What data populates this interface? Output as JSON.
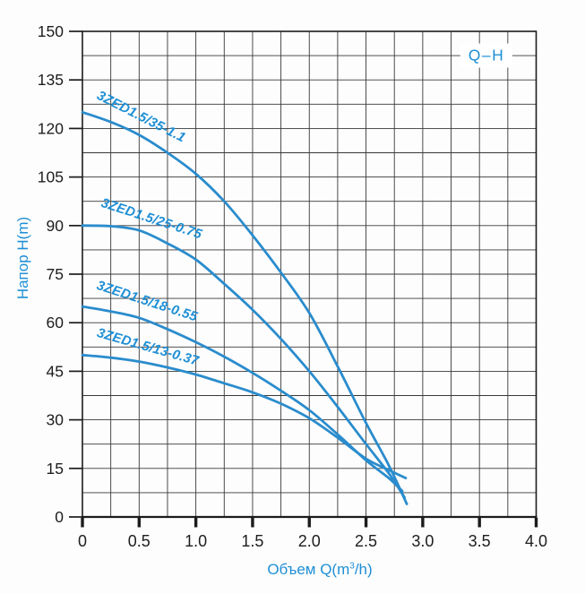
{
  "figure": {
    "title": "Q–H",
    "y_axis_title": "Напор H(m)",
    "x_axis_title": "Объем Q(m³/h)",
    "x_axis_title_parts": {
      "prefix": "Объем Q(m",
      "sup": "3",
      "suffix": "/h)"
    }
  },
  "colors": {
    "curve_blue": "#2a8ccd",
    "label_blue": "#1e8fd5",
    "grid_line": "#383838",
    "axis_line": "#1c1c1c",
    "tick_text": "#1d1d1d",
    "background": "#ffffff"
  },
  "chart_data": {
    "type": "line",
    "title": "Q–H",
    "xlabel": "Объем Q(m³/h)",
    "ylabel": "Напор H(m)",
    "xlim": [
      0,
      4.0
    ],
    "ylim": [
      0,
      150
    ],
    "x_major_step": 0.5,
    "x_minor_step": 0.25,
    "y_major_step": 15,
    "y_minor_step": 7.5,
    "grid": true,
    "x_tick_labels": [
      "0",
      "0.5",
      "1.0",
      "1.5",
      "2.0",
      "2.5",
      "3.0",
      "3.5",
      "4.0"
    ],
    "y_tick_labels": [
      "0",
      "15",
      "30",
      "45",
      "60",
      "75",
      "90",
      "105",
      "120",
      "135",
      "150"
    ],
    "legend_position": "labels-on-curves",
    "series": [
      {
        "name": "3ZED1.5/35-1.1",
        "points": [
          [
            0,
            125
          ],
          [
            0.25,
            122
          ],
          [
            0.5,
            118
          ],
          [
            0.75,
            112.5
          ],
          [
            1.0,
            106
          ],
          [
            1.25,
            97.5
          ],
          [
            1.5,
            87
          ],
          [
            1.75,
            75.5
          ],
          [
            2.0,
            63
          ],
          [
            2.25,
            46.5
          ],
          [
            2.5,
            29
          ],
          [
            2.7,
            16
          ],
          [
            2.86,
            4
          ]
        ]
      },
      {
        "name": "3ZED1.5/25-0.75",
        "points": [
          [
            0,
            90
          ],
          [
            0.25,
            89.8
          ],
          [
            0.5,
            88.5
          ],
          [
            0.75,
            84.5
          ],
          [
            1.0,
            79.5
          ],
          [
            1.25,
            72
          ],
          [
            1.5,
            64
          ],
          [
            1.75,
            55
          ],
          [
            2.0,
            45
          ],
          [
            2.25,
            34
          ],
          [
            2.5,
            22.5
          ],
          [
            2.7,
            13.5
          ],
          [
            2.84,
            6
          ]
        ]
      },
      {
        "name": "3ZED1.5/18-0.55",
        "points": [
          [
            0,
            65
          ],
          [
            0.25,
            63.5
          ],
          [
            0.5,
            61.5
          ],
          [
            0.75,
            58
          ],
          [
            1.0,
            54
          ],
          [
            1.25,
            49.5
          ],
          [
            1.5,
            44.5
          ],
          [
            1.75,
            39
          ],
          [
            2.0,
            33
          ],
          [
            2.25,
            25.5
          ],
          [
            2.5,
            17.5
          ],
          [
            2.7,
            12
          ],
          [
            2.82,
            8
          ]
        ]
      },
      {
        "name": "3ZED1.5/13-0.37",
        "points": [
          [
            0,
            50
          ],
          [
            0.25,
            49.2
          ],
          [
            0.5,
            48
          ],
          [
            0.75,
            46.2
          ],
          [
            1.0,
            44
          ],
          [
            1.25,
            41.3
          ],
          [
            1.5,
            38.5
          ],
          [
            1.75,
            35
          ],
          [
            2.0,
            30.5
          ],
          [
            2.25,
            24.5
          ],
          [
            2.5,
            18
          ],
          [
            2.7,
            14.5
          ],
          [
            2.85,
            12
          ]
        ]
      }
    ]
  }
}
